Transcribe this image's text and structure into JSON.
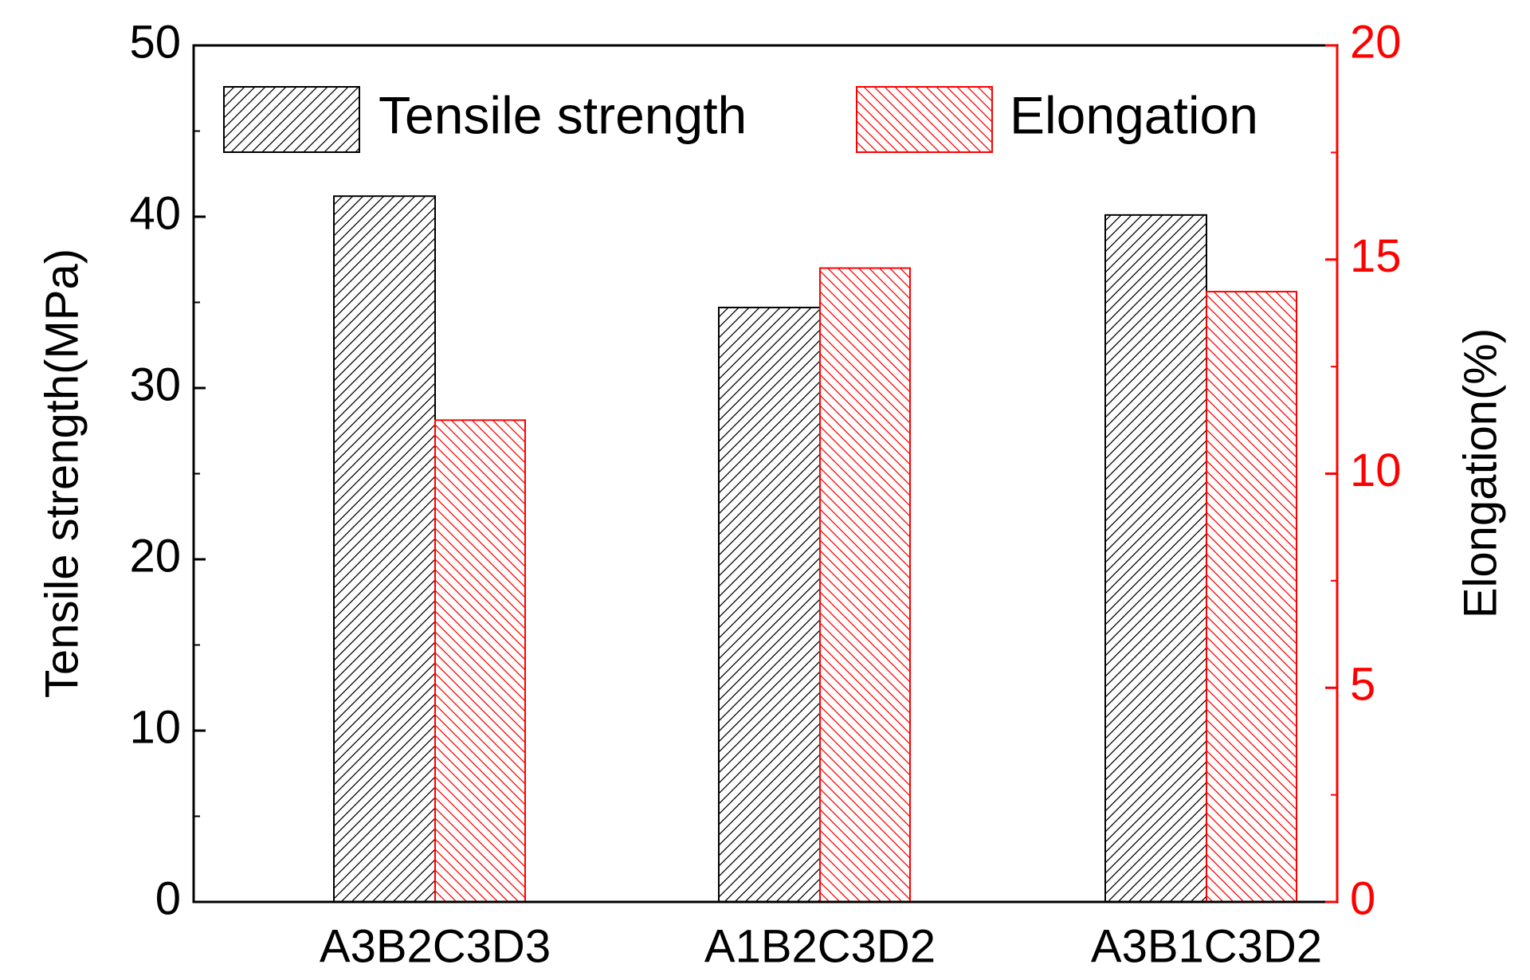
{
  "chart_data": {
    "type": "bar",
    "categories": [
      "A3B2C3D3",
      "A1B2C3D2",
      "A3B1C3D2"
    ],
    "series": [
      {
        "name": "Tensile strength",
        "axis": "left",
        "color": "#000000",
        "pattern": "forward-diagonal-hatch",
        "values": [
          41.2,
          34.7,
          40.1
        ]
      },
      {
        "name": "Elongation",
        "axis": "right",
        "color": "#ff0000",
        "pattern": "backward-diagonal-hatch",
        "values": [
          11.25,
          14.8,
          14.25
        ]
      }
    ],
    "ylabel_left": "Tensile strength(MPa)",
    "ylabel_right": "Elongation(%)",
    "ylim_left": [
      0,
      50
    ],
    "ylim_right": [
      0,
      20
    ],
    "yticks_left": [
      "0",
      "10",
      "20",
      "30",
      "40",
      "50"
    ],
    "yticks_right": [
      "0",
      "5",
      "10",
      "15",
      "20"
    ],
    "right_axis_color": "#ff0000",
    "grid": false,
    "legend_position": "top"
  }
}
